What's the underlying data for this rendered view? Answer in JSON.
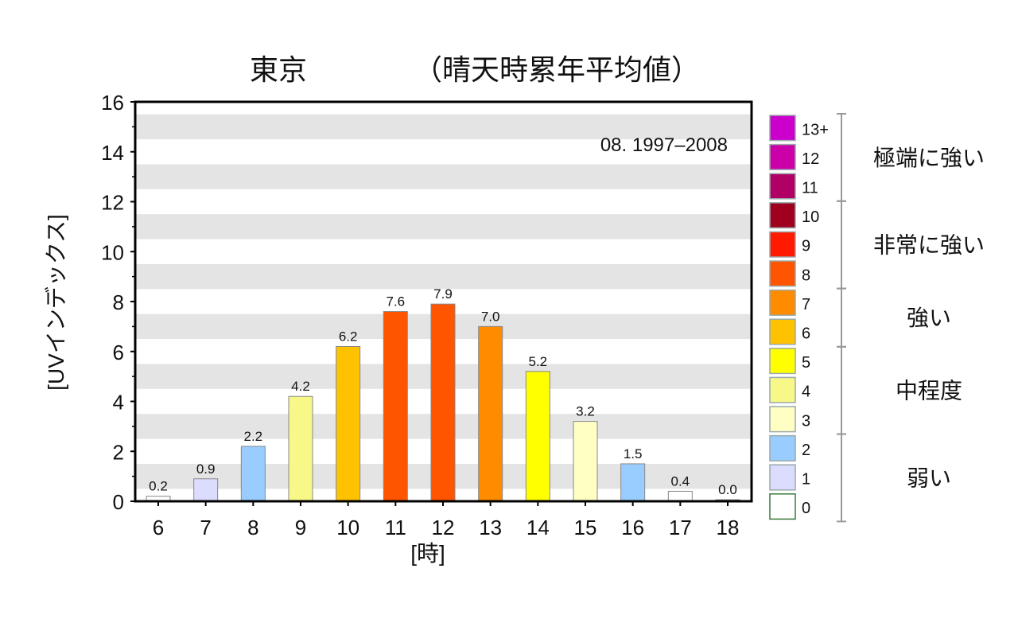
{
  "chart_data": {
    "type": "bar",
    "title_city": "東京",
    "title_note": "（晴天時累年平均値）",
    "period": "08. 1997–2008",
    "xlabel": "[時]",
    "ylabel": "[UVインデックス]",
    "ylim": [
      0,
      16
    ],
    "yticks": [
      0,
      2,
      4,
      6,
      8,
      10,
      12,
      14,
      16
    ],
    "categories": [
      "6",
      "7",
      "8",
      "9",
      "10",
      "11",
      "12",
      "13",
      "14",
      "15",
      "16",
      "17",
      "18"
    ],
    "values": [
      0.2,
      0.9,
      2.2,
      4.2,
      6.2,
      7.6,
      7.9,
      7.0,
      5.2,
      3.2,
      1.5,
      0.4,
      0.0
    ],
    "value_labels": [
      "0.2",
      "0.9",
      "2.2",
      "4.2",
      "6.2",
      "7.6",
      "7.9",
      "7.0",
      "5.2",
      "3.2",
      "1.5",
      "0.4",
      "0.0"
    ],
    "grid": "alternating horizontal bands",
    "legend": {
      "placement": "right",
      "levels": [
        {
          "label": "13+",
          "color": "#cc00cc"
        },
        {
          "label": "12",
          "color": "#cc00a8"
        },
        {
          "label": "11",
          "color": "#b00066"
        },
        {
          "label": "10",
          "color": "#a00020"
        },
        {
          "label": "9",
          "color": "#ff1a00"
        },
        {
          "label": "8",
          "color": "#ff5500"
        },
        {
          "label": "7",
          "color": "#ff8c00"
        },
        {
          "label": "6",
          "color": "#ffc200"
        },
        {
          "label": "5",
          "color": "#ffff00"
        },
        {
          "label": "4",
          "color": "#f8f888"
        },
        {
          "label": "3",
          "color": "#ffffc4"
        },
        {
          "label": "2",
          "color": "#99ccff"
        },
        {
          "label": "1",
          "color": "#dcdcff"
        },
        {
          "label": "0",
          "color": "#ffffff"
        }
      ],
      "groups": [
        {
          "label": "極端に強い",
          "from": 11,
          "to": 13
        },
        {
          "label": "非常に強い",
          "from": 8,
          "to": 10
        },
        {
          "label": "強い",
          "from": 6,
          "to": 7
        },
        {
          "label": "中程度",
          "from": 3,
          "to": 5
        },
        {
          "label": "弱い",
          "from": 0,
          "to": 2
        }
      ]
    }
  }
}
